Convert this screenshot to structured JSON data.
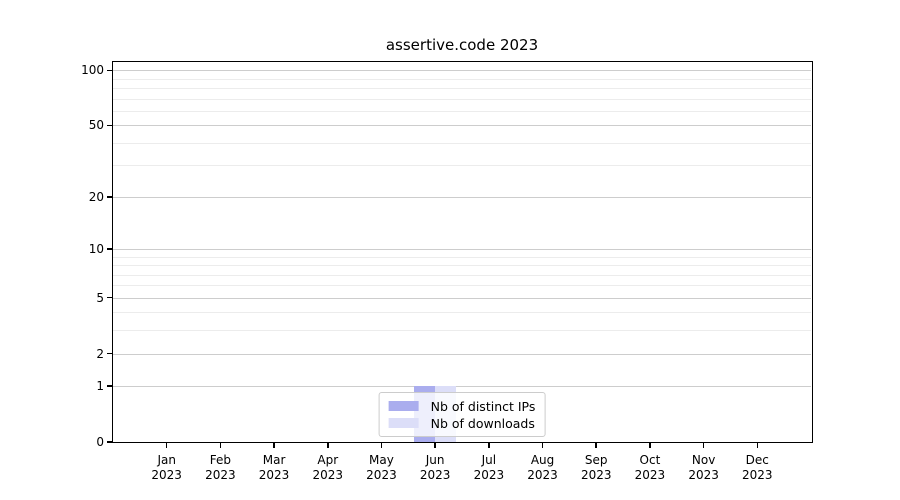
{
  "title": "assertive.code 2023",
  "chart_data": {
    "type": "bar",
    "title": "assertive.code 2023",
    "categories": [
      "Jan 2023",
      "Feb 2023",
      "Mar 2023",
      "Apr 2023",
      "May 2023",
      "Jun 2023",
      "Jul 2023",
      "Aug 2023",
      "Sep 2023",
      "Oct 2023",
      "Nov 2023",
      "Dec 2023"
    ],
    "series": [
      {
        "name": "Nb of distinct IPs",
        "color": "#aaadee",
        "values": [
          0,
          0,
          0,
          0,
          0,
          1,
          0,
          0,
          0,
          0,
          0,
          0
        ]
      },
      {
        "name": "Nb of downloads",
        "color": "#dcdef8",
        "values": [
          0,
          0,
          0,
          0,
          0,
          1,
          0,
          0,
          0,
          0,
          0,
          0
        ]
      }
    ],
    "yscale": "log1p",
    "ylim": [
      0,
      111
    ],
    "y_major_ticks": [
      0,
      1,
      2,
      5,
      10,
      20,
      50,
      100
    ],
    "y_minor_ticks": [
      3,
      4,
      6,
      7,
      8,
      9,
      30,
      40,
      60,
      70,
      80,
      90
    ],
    "grid": true,
    "legend_position": "lower center",
    "colors": {
      "major_grid": "#cdcdcd",
      "minor_grid": "#ececec",
      "spine": "#000000",
      "legend_border": "#cccccc"
    }
  }
}
